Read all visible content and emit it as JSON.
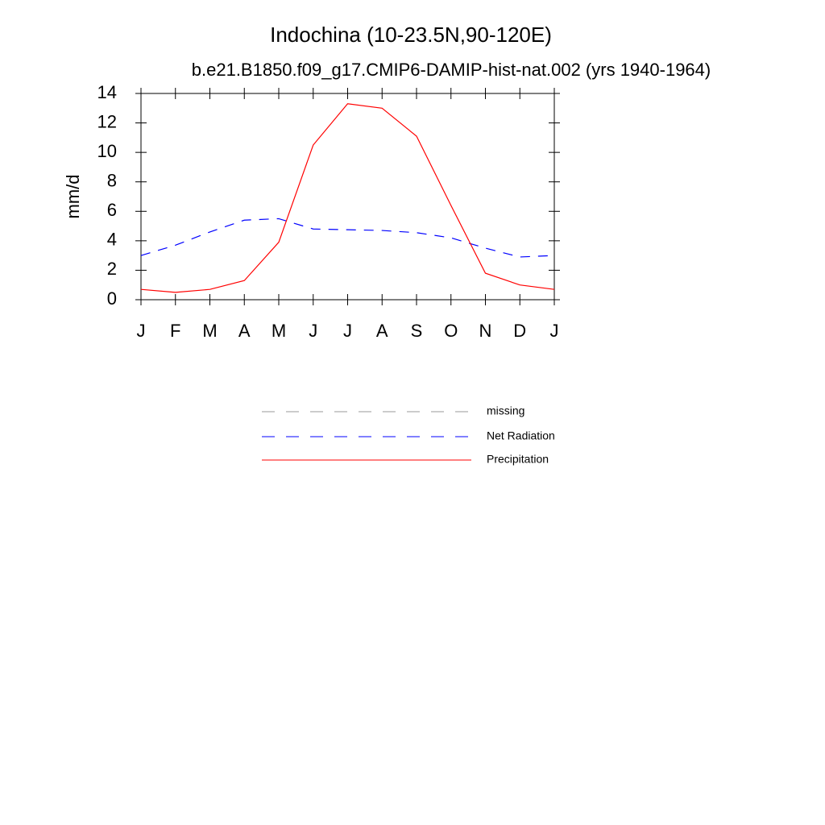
{
  "chart_data": {
    "type": "line",
    "title": "Indochina (10-23.5N,90-120E)",
    "subtitle": "b.e21.B1850.f09_g17.CMIP6-DAMIP-hist-nat.002 (yrs 1940-1964)",
    "y_label": "mm/d",
    "categories": [
      "J",
      "F",
      "M",
      "A",
      "M",
      "J",
      "J",
      "A",
      "S",
      "O",
      "N",
      "D",
      "J"
    ],
    "series": [
      {
        "name": "missing",
        "color": "#999999",
        "dash": true,
        "values": [
          null,
          null,
          null,
          null,
          null,
          null,
          null,
          null,
          null,
          null,
          null,
          null,
          null
        ]
      },
      {
        "name": "Net Radiation",
        "color": "#0000ff",
        "dash": true,
        "values": [
          3.0,
          3.7,
          4.6,
          5.4,
          5.5,
          4.8,
          4.75,
          4.7,
          4.55,
          4.2,
          3.5,
          2.9,
          3.0
        ]
      },
      {
        "name": "Precipitation",
        "color": "#ff0000",
        "dash": false,
        "values": [
          0.7,
          0.5,
          0.7,
          1.3,
          3.9,
          10.5,
          13.3,
          13.0,
          11.1,
          6.4,
          1.8,
          1.0,
          0.7
        ]
      }
    ],
    "ylim": [
      0,
      14
    ],
    "yticks": [
      0,
      2,
      4,
      6,
      8,
      10,
      12,
      14
    ],
    "grid": false
  }
}
